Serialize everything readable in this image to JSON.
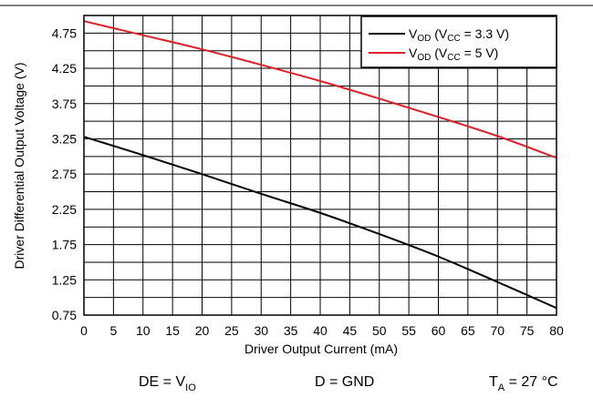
{
  "chart_data": {
    "type": "line",
    "xlabel": "Driver Output Current (mA)",
    "ylabel": "Driver Differential Output Voltage (V)",
    "xlim": [
      0,
      80
    ],
    "ylim": [
      0.75,
      5.0
    ],
    "x_ticks": [
      0,
      5,
      10,
      15,
      20,
      25,
      30,
      35,
      40,
      45,
      50,
      55,
      60,
      65,
      70,
      75,
      80
    ],
    "y_ticks": [
      0.75,
      1.25,
      1.75,
      2.25,
      2.75,
      3.25,
      3.75,
      4.25,
      4.75
    ],
    "y_tick_labels": [
      "0.75",
      "1.25",
      "1.75",
      "2.25",
      "2.75",
      "3.25",
      "3.75",
      "4.25",
      "4.75"
    ],
    "grid": true,
    "legend_position": "top-right",
    "series": [
      {
        "name": "VOD (VCC = 3.3 V)",
        "color": "#000000",
        "x": [
          0,
          10,
          20,
          30,
          40,
          50,
          60,
          70,
          80
        ],
        "y": [
          3.28,
          3.02,
          2.75,
          2.47,
          2.2,
          1.9,
          1.58,
          1.22,
          0.85
        ]
      },
      {
        "name": "VOD (VCC = 5 V)",
        "color": "#e31e24",
        "x": [
          0,
          10,
          20,
          30,
          40,
          50,
          60,
          70,
          80
        ],
        "y": [
          4.92,
          4.72,
          4.52,
          4.3,
          4.07,
          3.82,
          3.56,
          3.29,
          2.98
        ]
      }
    ]
  },
  "legend": [
    {
      "main": "V",
      "sub": "OD",
      "mid": " (V",
      "sub2": "CC",
      "rest": " = 3.3 V)"
    },
    {
      "main": "V",
      "sub": "OD",
      "mid": " (V",
      "sub2": "CC",
      "rest": " = 5 V)"
    }
  ],
  "conditions": {
    "de": {
      "main": "DE = V",
      "sub": "IO"
    },
    "d": {
      "main": "D = GND"
    },
    "ta": {
      "main": "T",
      "sub": "A",
      "rest": " = 27 °C"
    }
  }
}
